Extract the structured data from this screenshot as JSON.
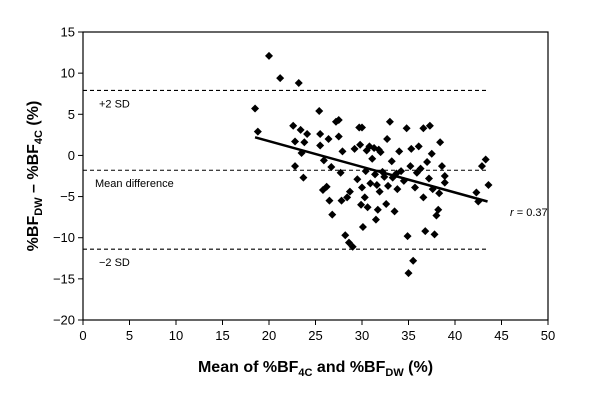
{
  "chart_data": {
    "type": "scatter",
    "title": "",
    "xlabel": {
      "parts": [
        "Mean of %BF",
        "4C",
        " and %BF",
        "DW",
        " (%)"
      ]
    },
    "ylabel": {
      "parts": [
        "%BF",
        "DW",
        " – %BF",
        "4C",
        " (%)"
      ]
    },
    "xlim": [
      0,
      50
    ],
    "ylim": [
      -20,
      15
    ],
    "xticks": [
      0,
      5,
      10,
      15,
      20,
      25,
      30,
      35,
      40,
      45,
      50
    ],
    "yticks": [
      15,
      10,
      5,
      0,
      -5,
      -10,
      -15,
      -20
    ],
    "ytick_labels": [
      "15",
      "10",
      "5",
      "0",
      "−5",
      "−10",
      "−15",
      "−20"
    ],
    "grid": false,
    "reference_lines": [
      {
        "label": "+2 SD",
        "y": 7.9,
        "style": "dashed"
      },
      {
        "label": "Mean difference",
        "y": -1.8,
        "style": "dashed"
      },
      {
        "label": "−2 SD",
        "y": -11.4,
        "style": "dashed"
      }
    ],
    "regression_line": {
      "x": [
        18.5,
        43.5
      ],
      "y": [
        2.2,
        -5.6
      ],
      "label": "r = 0.37"
    },
    "points": [
      [
        18.5,
        5.7
      ],
      [
        18.8,
        2.9
      ],
      [
        20,
        12.1
      ],
      [
        21.2,
        9.4
      ],
      [
        22.6,
        3.6
      ],
      [
        22.8,
        1.7
      ],
      [
        22.8,
        -1.3
      ],
      [
        23.2,
        8.8
      ],
      [
        23.4,
        3.1
      ],
      [
        23.5,
        0.3
      ],
      [
        23.7,
        -2.7
      ],
      [
        23.8,
        1.6
      ],
      [
        24.1,
        2.6
      ],
      [
        25.4,
        5.4
      ],
      [
        25.5,
        2.6
      ],
      [
        25.5,
        1.2
      ],
      [
        25.8,
        -4.2
      ],
      [
        25.9,
        -0.6
      ],
      [
        26.2,
        -3.8
      ],
      [
        26.4,
        2
      ],
      [
        26.5,
        -5.5
      ],
      [
        26.7,
        -1.4
      ],
      [
        26.8,
        -7.2
      ],
      [
        27.2,
        4.1
      ],
      [
        27.5,
        4.3
      ],
      [
        27.5,
        2.3
      ],
      [
        27.7,
        -2.1
      ],
      [
        27.8,
        -5.5
      ],
      [
        27.9,
        0.5
      ],
      [
        28.2,
        -9.7
      ],
      [
        28.4,
        -5.1
      ],
      [
        28.6,
        -10.6
      ],
      [
        28.7,
        -4.4
      ],
      [
        29,
        -11.1
      ],
      [
        29.2,
        0.8
      ],
      [
        29.5,
        -2.9
      ],
      [
        29.7,
        3.4
      ],
      [
        29.8,
        1.3
      ],
      [
        29.9,
        -6
      ],
      [
        30,
        3.4
      ],
      [
        30,
        -3.9
      ],
      [
        30.1,
        -8.7
      ],
      [
        30.3,
        -5.1
      ],
      [
        30.4,
        -1.9
      ],
      [
        30.5,
        0.6
      ],
      [
        30.6,
        -6.3
      ],
      [
        30.8,
        1.1
      ],
      [
        30.9,
        -3.4
      ],
      [
        31.1,
        -0.4
      ],
      [
        31.3,
        0.9
      ],
      [
        31.4,
        -2.3
      ],
      [
        31.5,
        -7.8
      ],
      [
        31.6,
        -3.6
      ],
      [
        31.7,
        -6.6
      ],
      [
        31.8,
        0.7
      ],
      [
        31.9,
        -4.4
      ],
      [
        32,
        0.4
      ],
      [
        32.2,
        -2
      ],
      [
        32.4,
        -2.6
      ],
      [
        32.6,
        -5.9
      ],
      [
        32.7,
        2
      ],
      [
        32.8,
        -3.7
      ],
      [
        33,
        4.1
      ],
      [
        33.2,
        -0.7
      ],
      [
        33.3,
        -2.7
      ],
      [
        33.5,
        -6.8
      ],
      [
        33.7,
        -2.2
      ],
      [
        33.8,
        -4.1
      ],
      [
        34,
        0.5
      ],
      [
        34.2,
        -1.9
      ],
      [
        34.5,
        -3.1
      ],
      [
        34.8,
        3.3
      ],
      [
        34.9,
        -9.8
      ],
      [
        35,
        -14.3
      ],
      [
        35.2,
        -1.3
      ],
      [
        35.3,
        0.8
      ],
      [
        35.5,
        -12.8
      ],
      [
        35.7,
        -3.9
      ],
      [
        35.9,
        -2.1
      ],
      [
        36.1,
        1.1
      ],
      [
        36.3,
        -1.6
      ],
      [
        36.6,
        3.3
      ],
      [
        36.6,
        -5.1
      ],
      [
        36.8,
        -9.2
      ],
      [
        37,
        -0.8
      ],
      [
        37.2,
        -2.8
      ],
      [
        37.3,
        3.6
      ],
      [
        37.5,
        0.2
      ],
      [
        37.6,
        -4.1
      ],
      [
        37.8,
        -9.6
      ],
      [
        38,
        -7.3
      ],
      [
        38.2,
        -6.6
      ],
      [
        38.3,
        -4.6
      ],
      [
        38.4,
        1.6
      ],
      [
        38.6,
        -1.3
      ],
      [
        38.9,
        -2.5
      ],
      [
        38.9,
        -3.3
      ],
      [
        42.3,
        -4.5
      ],
      [
        42.5,
        -5.6
      ],
      [
        42.9,
        -1.3
      ],
      [
        43.3,
        -0.5
      ],
      [
        43.6,
        -3.6
      ]
    ]
  }
}
